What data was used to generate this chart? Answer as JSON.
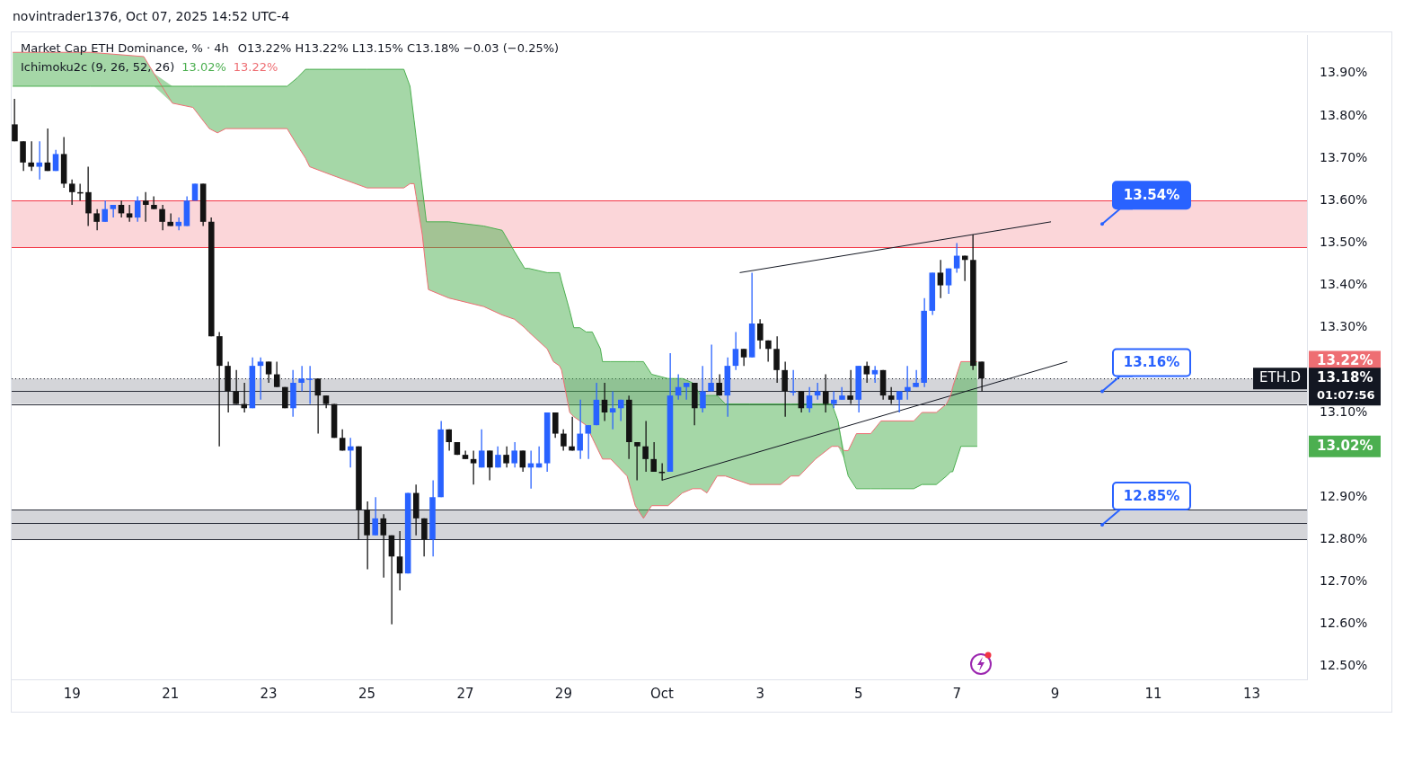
{
  "chart_data": {
    "type": "candlestick",
    "title": "Market Cap ETH Dominance, % · 4h",
    "annotations": [
      "novintrader1376, Oct 07, 2025 14:52 UTC-4",
      "O13.22%  H13.22%  L13.15%  C13.18%  −0.03 (−0.25%)",
      "Ichimoku2c (9, 26, 52, 26)",
      "13.02%",
      "13.22%",
      "01:07:56",
      "13.22%",
      "13.18%",
      "13.02%"
    ],
    "xlim": [
      "2025-09-17T18:30",
      "2025-10-14T03:00"
    ],
    "xticks": [
      {
        "value": "2025-09-19",
        "label": "19"
      },
      {
        "value": "2025-09-21",
        "label": "21"
      },
      {
        "value": "2025-09-23",
        "label": "23"
      },
      {
        "value": "2025-09-25",
        "label": "25"
      },
      {
        "value": "2025-09-27",
        "label": "27"
      },
      {
        "value": "2025-09-29",
        "label": "29"
      },
      {
        "value": "2025-10-01",
        "label": "Oct"
      },
      {
        "value": "2025-10-03",
        "label": "3"
      },
      {
        "value": "2025-10-05",
        "label": "5"
      },
      {
        "value": "2025-10-07",
        "label": "7"
      },
      {
        "value": "2025-10-09",
        "label": "9"
      },
      {
        "value": "2025-10-11",
        "label": "11"
      },
      {
        "value": "2025-10-13",
        "label": "13"
      }
    ],
    "ylim": [
      12.47,
      13.99
    ],
    "yticks": [
      {
        "value": 12.5,
        "label": "12.50%"
      },
      {
        "value": 12.6,
        "label": "12.60%"
      },
      {
        "value": 12.7,
        "label": "12.70%"
      },
      {
        "value": 12.8,
        "label": "12.80%"
      },
      {
        "value": 12.9,
        "label": "12.90%"
      },
      {
        "value": 13.1,
        "label": "13.10%"
      },
      {
        "value": 13.3,
        "label": "13.30%"
      },
      {
        "value": 13.4,
        "label": "13.40%"
      },
      {
        "value": 13.5,
        "label": "13.50%"
      },
      {
        "value": 13.6,
        "label": "13.60%"
      },
      {
        "value": 13.7,
        "label": "13.70%"
      },
      {
        "value": 13.8,
        "label": "13.80%"
      },
      {
        "value": 13.9,
        "label": "13.90%"
      }
    ],
    "bands": [
      {
        "axis": "y",
        "from": 13.49,
        "to": 13.6,
        "color": "#fbd6d9",
        "label": "13.54%"
      },
      {
        "axis": "y",
        "from": 13.12,
        "to": 13.18,
        "color": "#d4d5d9",
        "label": "13.16%"
      },
      {
        "axis": "y",
        "from": 12.8,
        "to": 12.87,
        "color": "#d4d5d9",
        "label": "12.85%"
      }
    ],
    "ref_lines": [
      {
        "axis": "y",
        "value": 13.18,
        "label": "ETH.D",
        "color": "#131722",
        "line_style": "dotted"
      },
      {
        "axis": "y",
        "value": 13.15,
        "color": "#2a2e39",
        "line_style": "solid"
      },
      {
        "axis": "y",
        "value": 12.84,
        "color": "#2a2e39",
        "line_style": "solid"
      },
      {
        "axis": "y",
        "value": 13.6,
        "color": "#f23645",
        "line_style": "solid"
      },
      {
        "axis": "y",
        "value": 13.49,
        "color": "#f23645",
        "line_style": "solid"
      },
      {
        "axis": "y",
        "value": 13.12,
        "color": "#2a2e39",
        "line_style": "solid"
      },
      {
        "axis": "y",
        "value": 12.87,
        "color": "#2a2e39",
        "line_style": "solid"
      },
      {
        "axis": "y",
        "value": 12.8,
        "color": "#2a2e39",
        "line_style": "solid"
      }
    ],
    "series": [
      {
        "x": [
          "2025-09-17T20:00",
          "2025-09-18T00:00",
          "2025-09-18T04:00",
          "2025-09-18T08:00",
          "2025-09-18T12:00",
          "2025-09-18T16:00",
          "2025-09-18T20:00",
          "2025-09-19T00:00",
          "2025-09-19T04:00",
          "2025-09-19T08:00",
          "2025-09-19T12:00",
          "2025-09-19T16:00",
          "2025-09-19T20:00",
          "2025-09-20T00:00",
          "2025-09-20T04:00",
          "2025-09-20T08:00",
          "2025-09-20T12:00",
          "2025-09-20T16:00",
          "2025-09-20T20:00",
          "2025-09-21T00:00",
          "2025-09-21T04:00",
          "2025-09-21T08:00",
          "2025-09-21T12:00",
          "2025-09-21T16:00",
          "2025-09-21T20:00",
          "2025-09-22T00:00",
          "2025-09-22T04:00",
          "2025-09-22T08:00",
          "2025-09-22T12:00",
          "2025-09-22T16:00",
          "2025-09-22T20:00",
          "2025-09-23T00:00",
          "2025-09-23T04:00",
          "2025-09-23T08:00",
          "2025-09-23T12:00",
          "2025-09-23T16:00",
          "2025-09-23T20:00",
          "2025-09-24T00:00",
          "2025-09-24T04:00",
          "2025-09-24T08:00",
          "2025-09-24T12:00",
          "2025-09-24T16:00",
          "2025-09-24T20:00",
          "2025-09-25T00:00",
          "2025-09-25T04:00",
          "2025-09-25T08:00",
          "2025-09-25T12:00",
          "2025-09-25T16:00",
          "2025-09-25T20:00",
          "2025-09-26T00:00",
          "2025-09-26T04:00",
          "2025-09-26T08:00",
          "2025-09-26T12:00",
          "2025-09-26T16:00",
          "2025-09-26T20:00",
          "2025-09-27T00:00",
          "2025-09-27T04:00",
          "2025-09-27T08:00",
          "2025-09-27T12:00",
          "2025-09-27T16:00",
          "2025-09-27T20:00",
          "2025-09-28T00:00",
          "2025-09-28T04:00",
          "2025-09-28T08:00",
          "2025-09-28T12:00",
          "2025-09-28T16:00",
          "2025-09-28T20:00",
          "2025-09-29T00:00",
          "2025-09-29T04:00",
          "2025-09-29T08:00",
          "2025-09-29T12:00",
          "2025-09-29T16:00",
          "2025-09-29T20:00",
          "2025-09-30T00:00",
          "2025-09-30T04:00",
          "2025-09-30T08:00",
          "2025-09-30T12:00",
          "2025-09-30T16:00",
          "2025-09-30T20:00",
          "2025-10-01T00:00",
          "2025-10-01T04:00",
          "2025-10-01T08:00",
          "2025-10-01T12:00",
          "2025-10-01T16:00",
          "2025-10-01T20:00",
          "2025-10-02T00:00",
          "2025-10-02T04:00",
          "2025-10-02T08:00",
          "2025-10-02T12:00",
          "2025-10-02T16:00",
          "2025-10-02T20:00",
          "2025-10-03T00:00",
          "2025-10-03T04:00",
          "2025-10-03T08:00",
          "2025-10-03T12:00",
          "2025-10-03T16:00",
          "2025-10-03T20:00",
          "2025-10-04T00:00",
          "2025-10-04T04:00",
          "2025-10-04T08:00",
          "2025-10-04T12:00",
          "2025-10-04T16:00",
          "2025-10-04T20:00",
          "2025-10-05T00:00",
          "2025-10-05T04:00",
          "2025-10-05T08:00",
          "2025-10-05T12:00",
          "2025-10-05T16:00",
          "2025-10-05T20:00",
          "2025-10-06T00:00",
          "2025-10-06T04:00",
          "2025-10-06T08:00",
          "2025-10-06T12:00",
          "2025-10-06T16:00",
          "2025-10-06T20:00",
          "2025-10-07T00:00",
          "2025-10-07T04:00",
          "2025-10-07T08:00",
          "2025-10-07T12:00"
        ],
        "ohlc": [
          [
            13.78,
            13.84,
            13.74,
            13.74
          ],
          [
            13.74,
            13.74,
            13.67,
            13.69
          ],
          [
            13.69,
            13.74,
            13.67,
            13.68
          ],
          [
            13.68,
            13.74,
            13.65,
            13.69
          ],
          [
            13.69,
            13.77,
            13.67,
            13.67
          ],
          [
            13.67,
            13.72,
            13.67,
            13.71
          ],
          [
            13.71,
            13.75,
            13.63,
            13.64
          ],
          [
            13.64,
            13.65,
            13.59,
            13.62
          ],
          [
            13.62,
            13.64,
            13.6,
            13.62
          ],
          [
            13.62,
            13.68,
            13.54,
            13.57
          ],
          [
            13.57,
            13.58,
            13.53,
            13.55
          ],
          [
            13.55,
            13.6,
            13.55,
            13.58
          ],
          [
            13.58,
            13.59,
            13.56,
            13.59
          ],
          [
            13.59,
            13.6,
            13.56,
            13.57
          ],
          [
            13.57,
            13.59,
            13.55,
            13.56
          ],
          [
            13.56,
            13.61,
            13.55,
            13.6
          ],
          [
            13.6,
            13.62,
            13.55,
            13.59
          ],
          [
            13.59,
            13.61,
            13.58,
            13.58
          ],
          [
            13.58,
            13.59,
            13.53,
            13.55
          ],
          [
            13.55,
            13.57,
            13.54,
            13.54
          ],
          [
            13.54,
            13.56,
            13.53,
            13.55
          ],
          [
            13.54,
            13.61,
            13.54,
            13.6
          ],
          [
            13.6,
            13.64,
            13.6,
            13.64
          ],
          [
            13.64,
            13.64,
            13.54,
            13.55
          ],
          [
            13.55,
            13.56,
            13.28,
            13.28
          ],
          [
            13.28,
            13.29,
            13.02,
            13.21
          ],
          [
            13.21,
            13.22,
            13.1,
            13.15
          ],
          [
            13.15,
            13.2,
            13.12,
            13.12
          ],
          [
            13.12,
            13.17,
            13.1,
            13.11
          ],
          [
            13.11,
            13.23,
            13.11,
            13.21
          ],
          [
            13.21,
            13.23,
            13.13,
            13.22
          ],
          [
            13.22,
            13.22,
            13.17,
            13.19
          ],
          [
            13.19,
            13.22,
            13.16,
            13.16
          ],
          [
            13.16,
            13.16,
            13.11,
            13.11
          ],
          [
            13.11,
            13.2,
            13.09,
            13.17
          ],
          [
            13.17,
            13.21,
            13.15,
            13.18
          ],
          [
            13.18,
            13.21,
            13.12,
            13.18
          ],
          [
            13.18,
            13.18,
            13.05,
            13.14
          ],
          [
            13.14,
            13.14,
            13.11,
            13.12
          ],
          [
            13.12,
            13.12,
            13.04,
            13.04
          ],
          [
            13.04,
            13.06,
            13.01,
            13.01
          ],
          [
            13.01,
            13.04,
            12.97,
            13.02
          ],
          [
            13.02,
            13.02,
            12.8,
            12.87
          ],
          [
            12.87,
            12.89,
            12.73,
            12.81
          ],
          [
            12.81,
            12.9,
            12.81,
            12.85
          ],
          [
            12.85,
            12.86,
            12.71,
            12.81
          ],
          [
            12.81,
            12.81,
            12.6,
            12.76
          ],
          [
            12.76,
            12.82,
            12.68,
            12.72
          ],
          [
            12.72,
            12.91,
            12.72,
            12.91
          ],
          [
            12.91,
            12.93,
            12.81,
            12.85
          ],
          [
            12.85,
            12.85,
            12.76,
            12.8
          ],
          [
            12.8,
            12.94,
            12.76,
            12.9
          ],
          [
            12.9,
            13.08,
            12.9,
            13.06
          ],
          [
            13.06,
            13.06,
            13.01,
            13.03
          ],
          [
            13.03,
            13.03,
            13.0,
            13.0
          ],
          [
            13.0,
            13.01,
            12.99,
            12.99
          ],
          [
            12.99,
            13.01,
            12.93,
            12.98
          ],
          [
            12.97,
            13.06,
            12.97,
            13.01
          ],
          [
            13.01,
            13.01,
            12.94,
            12.97
          ],
          [
            12.97,
            13.02,
            12.97,
            13.0
          ],
          [
            13.0,
            13.02,
            12.97,
            12.98
          ],
          [
            12.98,
            13.03,
            12.97,
            13.01
          ],
          [
            13.01,
            13.01,
            12.96,
            12.97
          ],
          [
            12.97,
            13.01,
            12.92,
            12.98
          ],
          [
            12.97,
            13.02,
            12.97,
            12.98
          ],
          [
            12.98,
            13.1,
            12.96,
            13.1
          ],
          [
            13.1,
            13.1,
            13.04,
            13.05
          ],
          [
            13.05,
            13.06,
            13.01,
            13.02
          ],
          [
            13.02,
            13.09,
            13.01,
            13.01
          ],
          [
            13.01,
            13.13,
            12.99,
            13.05
          ],
          [
            13.05,
            13.07,
            12.99,
            13.07
          ],
          [
            13.07,
            13.17,
            13.07,
            13.13
          ],
          [
            13.13,
            13.17,
            13.08,
            13.1
          ],
          [
            13.1,
            13.15,
            13.06,
            13.11
          ],
          [
            13.11,
            13.13,
            13.08,
            13.13
          ],
          [
            13.13,
            13.14,
            12.99,
            13.03
          ],
          [
            13.03,
            13.03,
            12.94,
            13.02
          ],
          [
            13.02,
            13.08,
            12.96,
            12.99
          ],
          [
            12.99,
            13.03,
            12.96,
            12.96
          ],
          [
            12.96,
            12.98,
            12.94,
            12.96
          ],
          [
            12.96,
            13.24,
            12.96,
            13.14
          ],
          [
            13.14,
            13.19,
            13.13,
            13.16
          ],
          [
            13.16,
            13.17,
            13.13,
            13.17
          ],
          [
            13.17,
            13.17,
            13.07,
            13.11
          ],
          [
            13.11,
            13.21,
            13.1,
            13.15
          ],
          [
            13.15,
            13.26,
            13.15,
            13.17
          ],
          [
            13.17,
            13.19,
            13.14,
            13.14
          ],
          [
            13.14,
            13.23,
            13.09,
            13.21
          ],
          [
            13.21,
            13.29,
            13.2,
            13.25
          ],
          [
            13.25,
            13.25,
            13.21,
            13.23
          ],
          [
            13.23,
            13.43,
            13.23,
            13.31
          ],
          [
            13.31,
            13.32,
            13.25,
            13.27
          ],
          [
            13.27,
            13.27,
            13.22,
            13.25
          ],
          [
            13.25,
            13.28,
            13.17,
            13.2
          ],
          [
            13.2,
            13.22,
            13.09,
            13.15
          ],
          [
            13.15,
            13.2,
            13.14,
            13.15
          ],
          [
            13.15,
            13.15,
            13.1,
            13.11
          ],
          [
            13.11,
            13.16,
            13.1,
            13.14
          ],
          [
            13.14,
            13.17,
            13.13,
            13.15
          ],
          [
            13.15,
            13.19,
            13.1,
            13.12
          ],
          [
            13.12,
            13.15,
            13.11,
            13.13
          ],
          [
            13.13,
            13.16,
            13.13,
            13.14
          ],
          [
            13.14,
            13.2,
            13.12,
            13.13
          ],
          [
            13.13,
            13.21,
            13.1,
            13.21
          ],
          [
            13.21,
            13.22,
            13.17,
            13.19
          ],
          [
            13.19,
            13.21,
            13.17,
            13.2
          ],
          [
            13.2,
            13.2,
            13.13,
            13.14
          ],
          [
            13.14,
            13.16,
            13.12,
            13.13
          ],
          [
            13.13,
            13.15,
            13.1,
            13.15
          ],
          [
            13.15,
            13.21,
            13.13,
            13.16
          ],
          [
            13.16,
            13.2,
            13.16,
            13.17
          ],
          [
            13.17,
            13.37,
            13.16,
            13.34
          ],
          [
            13.34,
            13.43,
            13.33,
            13.43
          ],
          [
            13.43,
            13.46,
            13.37,
            13.4
          ],
          [
            13.4,
            13.44,
            13.38,
            13.44
          ],
          [
            13.44,
            13.5,
            13.43,
            13.47
          ],
          [
            13.47,
            13.47,
            13.41,
            13.46
          ],
          [
            13.46,
            13.52,
            13.2,
            13.21
          ],
          [
            13.22,
            13.22,
            13.15,
            13.18
          ]
        ],
        "colors": [
          "#131313",
          "#131313",
          "#131313",
          "#2962ff",
          "#131313",
          "#2962ff",
          "#131313",
          "#131313",
          "#131313",
          "#131313",
          "#131313",
          "#2962ff",
          "#2962ff",
          "#131313",
          "#131313",
          "#2962ff",
          "#131313",
          "#131313",
          "#131313",
          "#131313",
          "#2962ff",
          "#2962ff",
          "#2962ff",
          "#131313",
          "#131313",
          "#131313",
          "#131313",
          "#131313",
          "#131313",
          "#2962ff",
          "#2962ff",
          "#131313",
          "#131313",
          "#131313",
          "#2962ff",
          "#2962ff",
          "#2962ff",
          "#131313",
          "#131313",
          "#131313",
          "#131313",
          "#2962ff",
          "#131313",
          "#131313",
          "#2962ff",
          "#131313",
          "#131313",
          "#131313",
          "#2962ff",
          "#131313",
          "#131313",
          "#2962ff",
          "#2962ff",
          "#131313",
          "#131313",
          "#131313",
          "#131313",
          "#2962ff",
          "#131313",
          "#2962ff",
          "#131313",
          "#2962ff",
          "#131313",
          "#2962ff",
          "#2962ff",
          "#2962ff",
          "#131313",
          "#131313",
          "#131313",
          "#2962ff",
          "#2962ff",
          "#2962ff",
          "#131313",
          "#2962ff",
          "#2962ff",
          "#131313",
          "#131313",
          "#131313",
          "#131313",
          "#131313",
          "#2962ff",
          "#2962ff",
          "#2962ff",
          "#131313",
          "#2962ff",
          "#2962ff",
          "#131313",
          "#2962ff",
          "#2962ff",
          "#131313",
          "#2962ff",
          "#131313",
          "#131313",
          "#131313",
          "#131313",
          "#2962ff",
          "#131313",
          "#2962ff",
          "#2962ff",
          "#131313",
          "#2962ff",
          "#2962ff",
          "#131313",
          "#2962ff",
          "#131313",
          "#2962ff",
          "#131313",
          "#131313",
          "#2962ff",
          "#2962ff",
          "#2962ff",
          "#2962ff",
          "#2962ff",
          "#131313",
          "#2962ff",
          "#2962ff",
          "#131313",
          "#131313",
          "#131313"
        ]
      },
      {
        "type": "line",
        "color": "#4caf50",
        "x": [
          "2025-09-17T19:00",
          "2025-09-19T09:00",
          "2025-09-20T11:00",
          "2025-09-20T16:00",
          "2025-09-21T01:00",
          "2025-09-21T11:00",
          "2025-09-21T19:00",
          "2025-09-21T23:00",
          "2025-09-22T03:00",
          "2025-09-23T09:00",
          "2025-09-23T14:00",
          "2025-09-23T18:00",
          "2025-09-23T20:00",
          "2025-09-24T07:00",
          "2025-09-25T00:00",
          "2025-09-25T18:00",
          "2025-09-25T21:00",
          "2025-09-25T23:00",
          "2025-09-26T00:00",
          "2025-09-26T03:00",
          "2025-09-26T05:00",
          "2025-09-26T06:00",
          "2025-09-26T16:00",
          "2025-09-27T09:00",
          "2025-09-27T18:00",
          "2025-09-28T00:00",
          "2025-09-28T05:00",
          "2025-09-28T07:00",
          "2025-09-28T16:00",
          "2025-09-28T19:00",
          "2025-09-28T22:00",
          "2025-09-28T23:00",
          "2025-09-29T03:00",
          "2025-09-29T05:00",
          "2025-09-29T08:00",
          "2025-09-29T11:00",
          "2025-09-29T14:00",
          "2025-09-29T18:00",
          "2025-09-29T19:00",
          "2025-09-29T23:00",
          "2025-09-30T07:00",
          "2025-09-30T11:00",
          "2025-09-30T15:00",
          "2025-09-30T19:00",
          "2025-10-01T03:00",
          "2025-10-01T10:00",
          "2025-10-01T15:00",
          "2025-10-01T19:00",
          "2025-10-01T22:00",
          "2025-10-02T03:00",
          "2025-10-02T07:00",
          "2025-10-02T19:00",
          "2025-10-03T10:00",
          "2025-10-03T15:00",
          "2025-10-03T19:00",
          "2025-10-04T03:00",
          "2025-10-04T11:00",
          "2025-10-04T14:00",
          "2025-10-04T17:00",
          "2025-10-04T19:00",
          "2025-10-04T23:00",
          "2025-10-05T06:00",
          "2025-10-05T11:00",
          "2025-10-06T03:00",
          "2025-10-06T07:00",
          "2025-10-06T14:00",
          "2025-10-06T19:00",
          "2025-10-06T21:00",
          "2025-10-06T22:00",
          "2025-10-07T02:00",
          "2025-10-07T10:00"
        ],
        "values": [
          13.87,
          13.87,
          13.87,
          13.87,
          13.87,
          13.87,
          13.87,
          13.87,
          13.87,
          13.87,
          13.89,
          13.91,
          13.91,
          13.91,
          13.91,
          13.91,
          13.87,
          13.79,
          13.75,
          13.63,
          13.55,
          13.55,
          13.55,
          13.54,
          13.53,
          13.48,
          13.44,
          13.44,
          13.43,
          13.43,
          13.43,
          13.41,
          13.34,
          13.3,
          13.3,
          13.29,
          13.29,
          13.25,
          13.22,
          13.22,
          13.22,
          13.22,
          13.22,
          13.19,
          13.18,
          13.18,
          13.17,
          13.14,
          13.14,
          13.14,
          13.12,
          13.12,
          13.12,
          13.12,
          13.12,
          13.12,
          13.12,
          13.08,
          12.99,
          12.95,
          12.92,
          12.92,
          12.92,
          12.92,
          12.93,
          12.93,
          12.95,
          12.96,
          12.96,
          13.02,
          13.02
        ],
        "lower": [
          13.87,
          13.87,
          13.87,
          13.87,
          13.83,
          13.82,
          13.77,
          13.76,
          13.77,
          13.77,
          13.73,
          13.7,
          13.68,
          13.66,
          13.63,
          13.63,
          13.64,
          13.64,
          13.61,
          13.52,
          13.43,
          13.39,
          13.37,
          13.35,
          13.33,
          13.32,
          13.3,
          13.29,
          13.25,
          13.22,
          13.21,
          13.2,
          13.1,
          13.09,
          13.08,
          13.07,
          13.04,
          13.0,
          12.99,
          12.99,
          12.95,
          12.88,
          12.85,
          12.88,
          12.88,
          12.91,
          12.92,
          12.92,
          12.91,
          12.95,
          12.95,
          12.93,
          12.93,
          12.95,
          12.95,
          12.99,
          13.02,
          13.02,
          12.99,
          12.95,
          12.92,
          12.92,
          12.92,
          12.92,
          12.93,
          12.93,
          12.95,
          12.96,
          12.96,
          13.02,
          13.02
        ],
        "upper": [
          13.95,
          13.95,
          13.94,
          13.9,
          13.87,
          13.87,
          13.87,
          13.87,
          13.87,
          13.87,
          13.89,
          13.91,
          13.91,
          13.91,
          13.91,
          13.91,
          13.87,
          13.79,
          13.75,
          13.63,
          13.55,
          13.55,
          13.55,
          13.54,
          13.53,
          13.48,
          13.44,
          13.44,
          13.43,
          13.43,
          13.43,
          13.41,
          13.34,
          13.3,
          13.3,
          13.29,
          13.29,
          13.25,
          13.22,
          13.22,
          13.22,
          13.22,
          13.22,
          13.19,
          13.18,
          13.18,
          13.17,
          13.14,
          13.14,
          13.14,
          13.12,
          13.12,
          13.12,
          13.12,
          13.12,
          13.12,
          13.12,
          13.08,
          13.01,
          13.01,
          13.05,
          13.05,
          13.08,
          13.08,
          13.1,
          13.1,
          13.12,
          13.14,
          13.16,
          13.22,
          13.22
        ]
      },
      {
        "type": "line",
        "color": "#ee6e73",
        "x": [
          "2025-09-17T19:00",
          "2025-09-19T09:00",
          "2025-09-20T11:00",
          "2025-09-20T16:00",
          "2025-09-21T01:00",
          "2025-09-21T11:00",
          "2025-09-21T19:00",
          "2025-09-21T23:00",
          "2025-09-22T03:00",
          "2025-09-23T09:00",
          "2025-09-23T14:00",
          "2025-09-23T18:00",
          "2025-09-23T20:00",
          "2025-09-24T07:00",
          "2025-09-25T00:00",
          "2025-09-25T18:00",
          "2025-09-25T21:00",
          "2025-09-25T23:00",
          "2025-09-26T00:00",
          "2025-09-26T03:00",
          "2025-09-26T05:00",
          "2025-09-26T06:00",
          "2025-09-26T16:00",
          "2025-09-27T09:00",
          "2025-09-27T18:00",
          "2025-09-28T00:00",
          "2025-09-28T05:00",
          "2025-09-28T07:00",
          "2025-09-28T16:00",
          "2025-09-28T19:00",
          "2025-09-28T22:00",
          "2025-09-28T23:00",
          "2025-09-29T03:00",
          "2025-09-29T05:00",
          "2025-09-29T08:00",
          "2025-09-29T11:00",
          "2025-09-29T14:00",
          "2025-09-29T18:00",
          "2025-09-29T19:00",
          "2025-09-29T23:00",
          "2025-09-30T07:00",
          "2025-09-30T11:00",
          "2025-09-30T15:00",
          "2025-09-30T19:00",
          "2025-10-01T03:00",
          "2025-10-01T10:00",
          "2025-10-01T15:00",
          "2025-10-01T19:00",
          "2025-10-01T22:00",
          "2025-10-02T03:00",
          "2025-10-02T07:00",
          "2025-10-02T19:00",
          "2025-10-03T10:00",
          "2025-10-03T15:00",
          "2025-10-03T19:00",
          "2025-10-04T03:00",
          "2025-10-04T11:00",
          "2025-10-04T14:00",
          "2025-10-04T17:00",
          "2025-10-04T19:00",
          "2025-10-04T23:00",
          "2025-10-05T06:00",
          "2025-10-05T11:00",
          "2025-10-06T03:00",
          "2025-10-06T07:00",
          "2025-10-06T14:00",
          "2025-10-06T19:00",
          "2025-10-06T21:00",
          "2025-10-06T22:00",
          "2025-10-07T02:00",
          "2025-10-07T10:00"
        ],
        "values": [
          13.95,
          13.95,
          13.94,
          13.9,
          13.83,
          13.82,
          13.77,
          13.76,
          13.77,
          13.77,
          13.73,
          13.7,
          13.68,
          13.66,
          13.63,
          13.63,
          13.64,
          13.64,
          13.61,
          13.52,
          13.43,
          13.39,
          13.37,
          13.35,
          13.33,
          13.32,
          13.3,
          13.29,
          13.25,
          13.22,
          13.21,
          13.2,
          13.1,
          13.09,
          13.08,
          13.07,
          13.04,
          13.0,
          12.99,
          12.99,
          12.95,
          12.88,
          12.85,
          12.88,
          12.88,
          12.91,
          12.92,
          12.92,
          12.91,
          12.95,
          12.95,
          12.93,
          12.93,
          12.95,
          12.95,
          12.99,
          13.02,
          13.02,
          13.01,
          13.01,
          13.05,
          13.05,
          13.08,
          13.08,
          13.1,
          13.1,
          13.12,
          13.14,
          13.16,
          13.22,
          13.22
        ]
      },
      {
        "type": "line",
        "color": "#131722",
        "x": [
          "2025-10-02T14:00",
          "2025-10-08T22:00"
        ],
        "values": [
          13.43,
          13.55
        ]
      },
      {
        "type": "line",
        "color": "#131722",
        "x": [
          "2025-10-01T00:00",
          "2025-10-09T06:00"
        ],
        "values": [
          12.94,
          13.22
        ]
      }
    ]
  }
}
